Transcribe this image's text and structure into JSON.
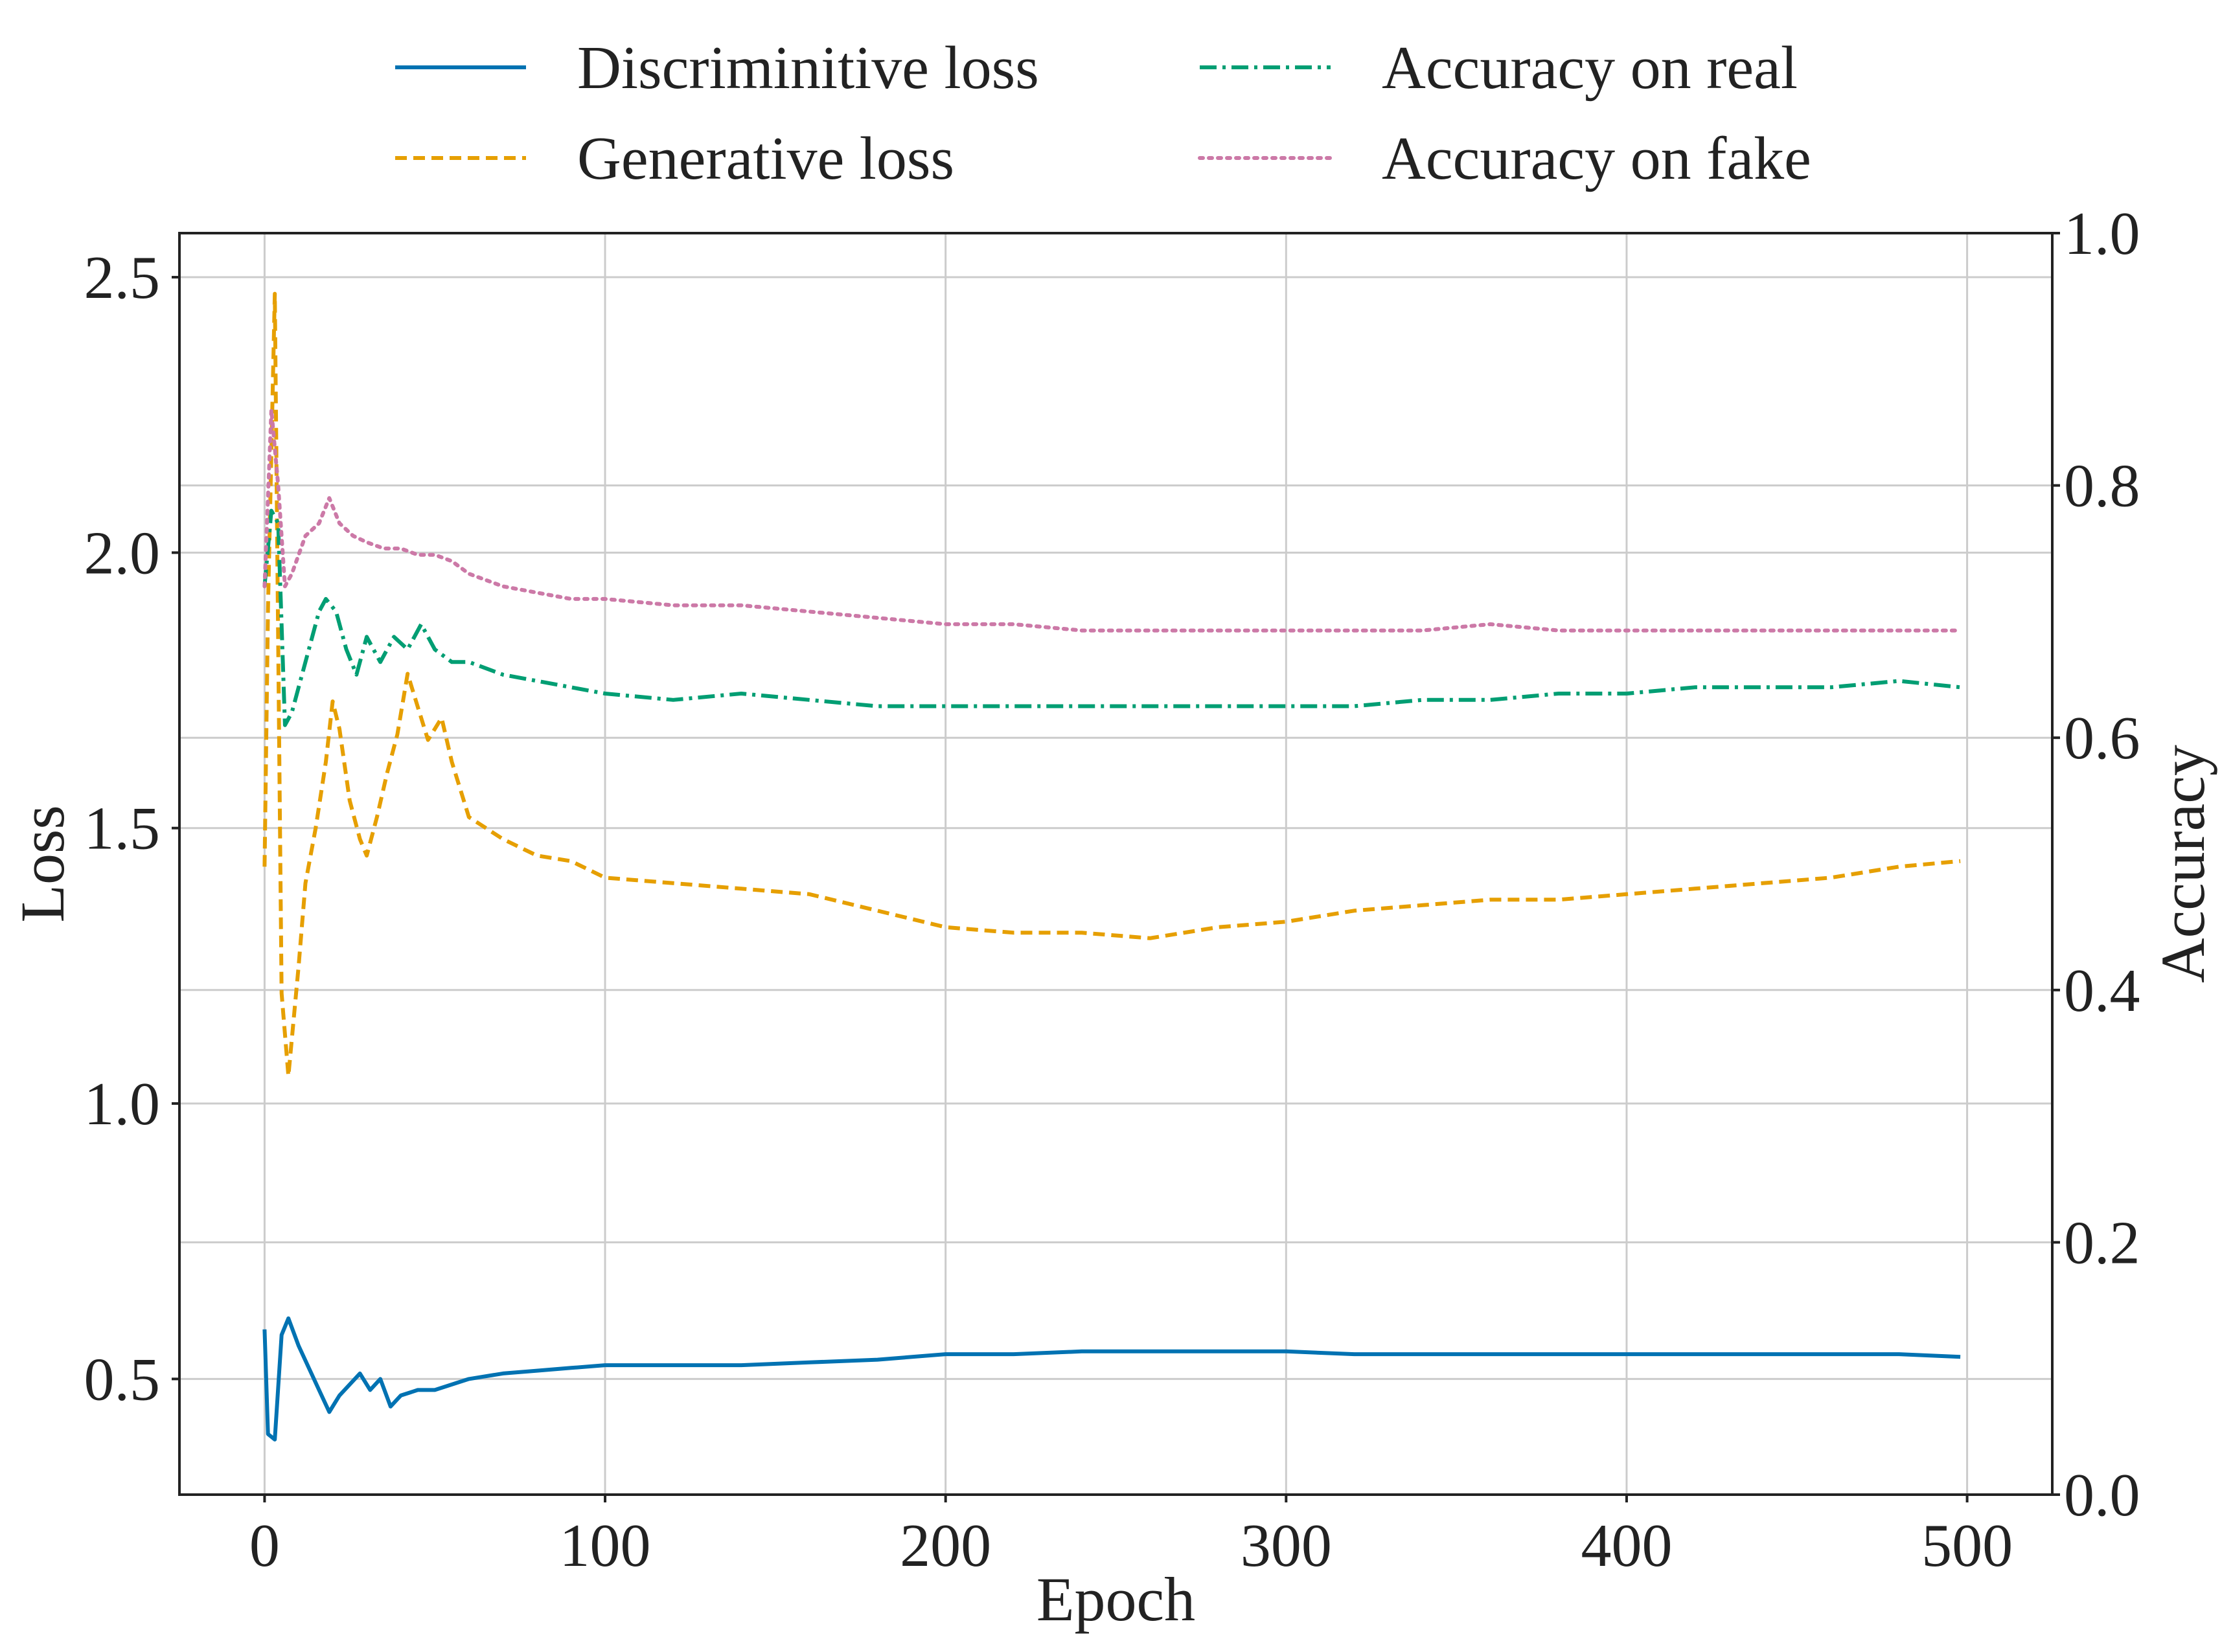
{
  "chart_data": {
    "type": "line",
    "xlabel": "Epoch",
    "ylabel_left": "Loss",
    "ylabel_right": "Accuracy",
    "xlim": [
      -25,
      525
    ],
    "ylim_left": [
      0.29,
      2.58
    ],
    "ylim_right": [
      0.0,
      1.0
    ],
    "x_ticks": [
      0,
      100,
      200,
      300,
      400,
      500
    ],
    "x_tick_labels": [
      "0",
      "100",
      "200",
      "300",
      "400",
      "500"
    ],
    "y_left_ticks": [
      0.5,
      1.0,
      1.5,
      2.0,
      2.5
    ],
    "y_left_tick_labels": [
      "0.5",
      "1.0",
      "1.5",
      "2.0",
      "2.5"
    ],
    "y_right_ticks": [
      0.0,
      0.2,
      0.4,
      0.6,
      0.8,
      1.0
    ],
    "y_right_tick_labels": [
      "0.0",
      "0.2",
      "0.4",
      "0.6",
      "0.8",
      "1.0"
    ],
    "grid": true,
    "legend_position": "top-center, above plot, 2 columns",
    "series": [
      {
        "name": "Discriminitive loss",
        "axis": "left",
        "style": "solid",
        "color": "#0072b2",
        "points": [
          [
            0,
            0.59
          ],
          [
            1,
            0.4
          ],
          [
            3,
            0.39
          ],
          [
            5,
            0.58
          ],
          [
            7,
            0.61
          ],
          [
            10,
            0.56
          ],
          [
            13,
            0.52
          ],
          [
            16,
            0.48
          ],
          [
            19,
            0.44
          ],
          [
            22,
            0.47
          ],
          [
            25,
            0.49
          ],
          [
            28,
            0.51
          ],
          [
            31,
            0.48
          ],
          [
            34,
            0.5
          ],
          [
            37,
            0.45
          ],
          [
            40,
            0.47
          ],
          [
            45,
            0.48
          ],
          [
            50,
            0.48
          ],
          [
            60,
            0.5
          ],
          [
            70,
            0.51
          ],
          [
            80,
            0.515
          ],
          [
            90,
            0.52
          ],
          [
            100,
            0.525
          ],
          [
            120,
            0.525
          ],
          [
            140,
            0.525
          ],
          [
            160,
            0.53
          ],
          [
            180,
            0.535
          ],
          [
            200,
            0.545
          ],
          [
            220,
            0.545
          ],
          [
            240,
            0.55
          ],
          [
            260,
            0.55
          ],
          [
            280,
            0.55
          ],
          [
            300,
            0.55
          ],
          [
            320,
            0.545
          ],
          [
            340,
            0.545
          ],
          [
            360,
            0.545
          ],
          [
            380,
            0.545
          ],
          [
            400,
            0.545
          ],
          [
            420,
            0.545
          ],
          [
            440,
            0.545
          ],
          [
            460,
            0.545
          ],
          [
            480,
            0.545
          ],
          [
            498,
            0.54
          ]
        ]
      },
      {
        "name": "Generative loss",
        "axis": "left",
        "style": "dashed",
        "color": "#e69f00",
        "points": [
          [
            0,
            1.43
          ],
          [
            1,
            1.9
          ],
          [
            3,
            2.47
          ],
          [
            5,
            1.2
          ],
          [
            7,
            1.05
          ],
          [
            10,
            1.25
          ],
          [
            12,
            1.4
          ],
          [
            15,
            1.5
          ],
          [
            18,
            1.62
          ],
          [
            20,
            1.73
          ],
          [
            22,
            1.68
          ],
          [
            25,
            1.55
          ],
          [
            28,
            1.48
          ],
          [
            30,
            1.45
          ],
          [
            33,
            1.52
          ],
          [
            36,
            1.6
          ],
          [
            39,
            1.67
          ],
          [
            42,
            1.78
          ],
          [
            45,
            1.72
          ],
          [
            48,
            1.66
          ],
          [
            52,
            1.7
          ],
          [
            55,
            1.62
          ],
          [
            60,
            1.52
          ],
          [
            70,
            1.48
          ],
          [
            80,
            1.45
          ],
          [
            90,
            1.44
          ],
          [
            100,
            1.41
          ],
          [
            120,
            1.4
          ],
          [
            140,
            1.39
          ],
          [
            160,
            1.38
          ],
          [
            180,
            1.35
          ],
          [
            200,
            1.32
          ],
          [
            220,
            1.31
          ],
          [
            240,
            1.31
          ],
          [
            260,
            1.3
          ],
          [
            280,
            1.32
          ],
          [
            300,
            1.33
          ],
          [
            320,
            1.35
          ],
          [
            340,
            1.36
          ],
          [
            360,
            1.37
          ],
          [
            380,
            1.37
          ],
          [
            400,
            1.38
          ],
          [
            420,
            1.39
          ],
          [
            440,
            1.4
          ],
          [
            460,
            1.41
          ],
          [
            480,
            1.43
          ],
          [
            498,
            1.44
          ]
        ]
      },
      {
        "name": "Accuracy on real",
        "axis": "right",
        "style": "dashdot",
        "color": "#009e73",
        "points": [
          [
            0,
            0.72
          ],
          [
            2,
            0.78
          ],
          [
            4,
            0.77
          ],
          [
            6,
            0.61
          ],
          [
            8,
            0.62
          ],
          [
            12,
            0.66
          ],
          [
            16,
            0.7
          ],
          [
            18,
            0.71
          ],
          [
            21,
            0.7
          ],
          [
            24,
            0.67
          ],
          [
            27,
            0.65
          ],
          [
            30,
            0.68
          ],
          [
            34,
            0.66
          ],
          [
            38,
            0.68
          ],
          [
            42,
            0.67
          ],
          [
            46,
            0.69
          ],
          [
            50,
            0.67
          ],
          [
            55,
            0.66
          ],
          [
            60,
            0.66
          ],
          [
            70,
            0.65
          ],
          [
            80,
            0.645
          ],
          [
            90,
            0.64
          ],
          [
            100,
            0.635
          ],
          [
            120,
            0.63
          ],
          [
            140,
            0.635
          ],
          [
            160,
            0.63
          ],
          [
            180,
            0.625
          ],
          [
            200,
            0.625
          ],
          [
            220,
            0.625
          ],
          [
            240,
            0.625
          ],
          [
            260,
            0.625
          ],
          [
            280,
            0.625
          ],
          [
            300,
            0.625
          ],
          [
            320,
            0.625
          ],
          [
            340,
            0.63
          ],
          [
            360,
            0.63
          ],
          [
            380,
            0.635
          ],
          [
            400,
            0.635
          ],
          [
            420,
            0.64
          ],
          [
            440,
            0.64
          ],
          [
            460,
            0.64
          ],
          [
            480,
            0.645
          ],
          [
            498,
            0.64
          ]
        ]
      },
      {
        "name": "Accuracy on fake",
        "axis": "right",
        "style": "dotted",
        "color": "#cc79a7",
        "points": [
          [
            0,
            0.72
          ],
          [
            2,
            0.86
          ],
          [
            4,
            0.8
          ],
          [
            6,
            0.72
          ],
          [
            8,
            0.73
          ],
          [
            12,
            0.76
          ],
          [
            16,
            0.77
          ],
          [
            19,
            0.79
          ],
          [
            22,
            0.77
          ],
          [
            26,
            0.76
          ],
          [
            30,
            0.755
          ],
          [
            35,
            0.75
          ],
          [
            40,
            0.75
          ],
          [
            45,
            0.745
          ],
          [
            50,
            0.745
          ],
          [
            55,
            0.74
          ],
          [
            60,
            0.73
          ],
          [
            70,
            0.72
          ],
          [
            80,
            0.715
          ],
          [
            90,
            0.71
          ],
          [
            100,
            0.71
          ],
          [
            120,
            0.705
          ],
          [
            140,
            0.705
          ],
          [
            160,
            0.7
          ],
          [
            180,
            0.695
          ],
          [
            200,
            0.69
          ],
          [
            220,
            0.69
          ],
          [
            240,
            0.685
          ],
          [
            260,
            0.685
          ],
          [
            280,
            0.685
          ],
          [
            300,
            0.685
          ],
          [
            320,
            0.685
          ],
          [
            340,
            0.685
          ],
          [
            360,
            0.69
          ],
          [
            380,
            0.685
          ],
          [
            400,
            0.685
          ],
          [
            420,
            0.685
          ],
          [
            440,
            0.685
          ],
          [
            460,
            0.685
          ],
          [
            480,
            0.685
          ],
          [
            498,
            0.685
          ]
        ]
      }
    ]
  }
}
